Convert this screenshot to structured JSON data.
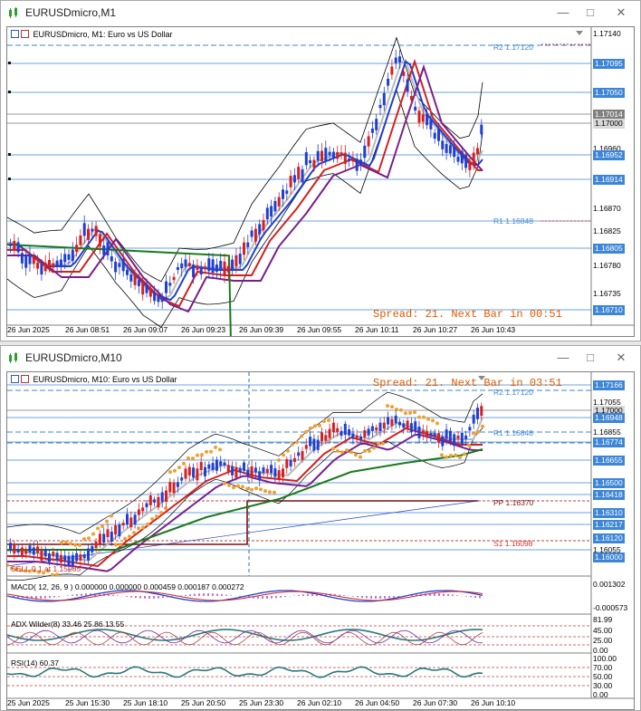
{
  "windows": [
    {
      "title": "EURUSDmicro,M1",
      "header": "EURUSDmicro, M1:  Euro vs US Dollar",
      "spread_text": "Spread: 21. Next Bar in 00:51",
      "pivot_labels": [
        "R2 1.17120",
        "R1 1.16848"
      ],
      "price_axis": [
        "1.17140",
        "1.17095",
        "1.17050",
        "1.17014",
        "1.17000",
        "1.16960",
        "1.16952",
        "1.16914",
        "1.16870",
        "1.16825",
        "1.16805",
        "1.16780",
        "1.16735",
        "1.16710"
      ],
      "time_axis": [
        "26 Jun 2025",
        "26 Jun 08:51",
        "26 Jun 09:07",
        "26 Jun 09:23",
        "26 Jun 09:39",
        "26 Jun 09:55",
        "26 Jun 10:11",
        "26 Jun 10:27",
        "26 Jun 10:43"
      ]
    },
    {
      "title": "EURUSDmicro,M10",
      "header": "EURUSDmicro, M10:  Euro vs US Dollar",
      "spread_text": "Spread: 21. Next Bar in 03:51",
      "pivot_labels": [
        "R2 1.17120",
        "R1 1.16848",
        "PP 1.16370",
        "S1 1.16098"
      ],
      "sell_label": "SELL 0.1 at 1.15985",
      "price_axis": [
        "1.17166",
        "1.17055",
        "1.17000",
        "1.16948",
        "1.16855",
        "1.16774",
        "1.16655",
        "1.16500",
        "1.16418",
        "1.16310",
        "1.16217",
        "1.16120",
        "1.16055",
        "1.16000"
      ],
      "macd_label": "MACD( 12, 26, 9 ) 0.000000 0.000000 0.000459 0.000187 0.000272",
      "macd_axis": [
        "0.001302",
        "-0.000573"
      ],
      "adx_label": "ADX Wilder(8) 33.46 25.86 13.55",
      "adx_axis": [
        "81.99",
        "45.00",
        "25.00",
        "0.00"
      ],
      "rsi_label": "RSI(14) 60.37",
      "rsi_axis": [
        "100.00",
        "70.00",
        "50.00",
        "30.00",
        "0.00"
      ],
      "time_axis": [
        "25 Jun 2025",
        "25 Jun 15:30",
        "25 Jun 18:10",
        "25 Jun 20:50",
        "25 Jun 23:30",
        "26 Jun 02:10",
        "26 Jun 04:50",
        "26 Jun 07:30",
        "26 Jun 10:10"
      ]
    }
  ]
}
